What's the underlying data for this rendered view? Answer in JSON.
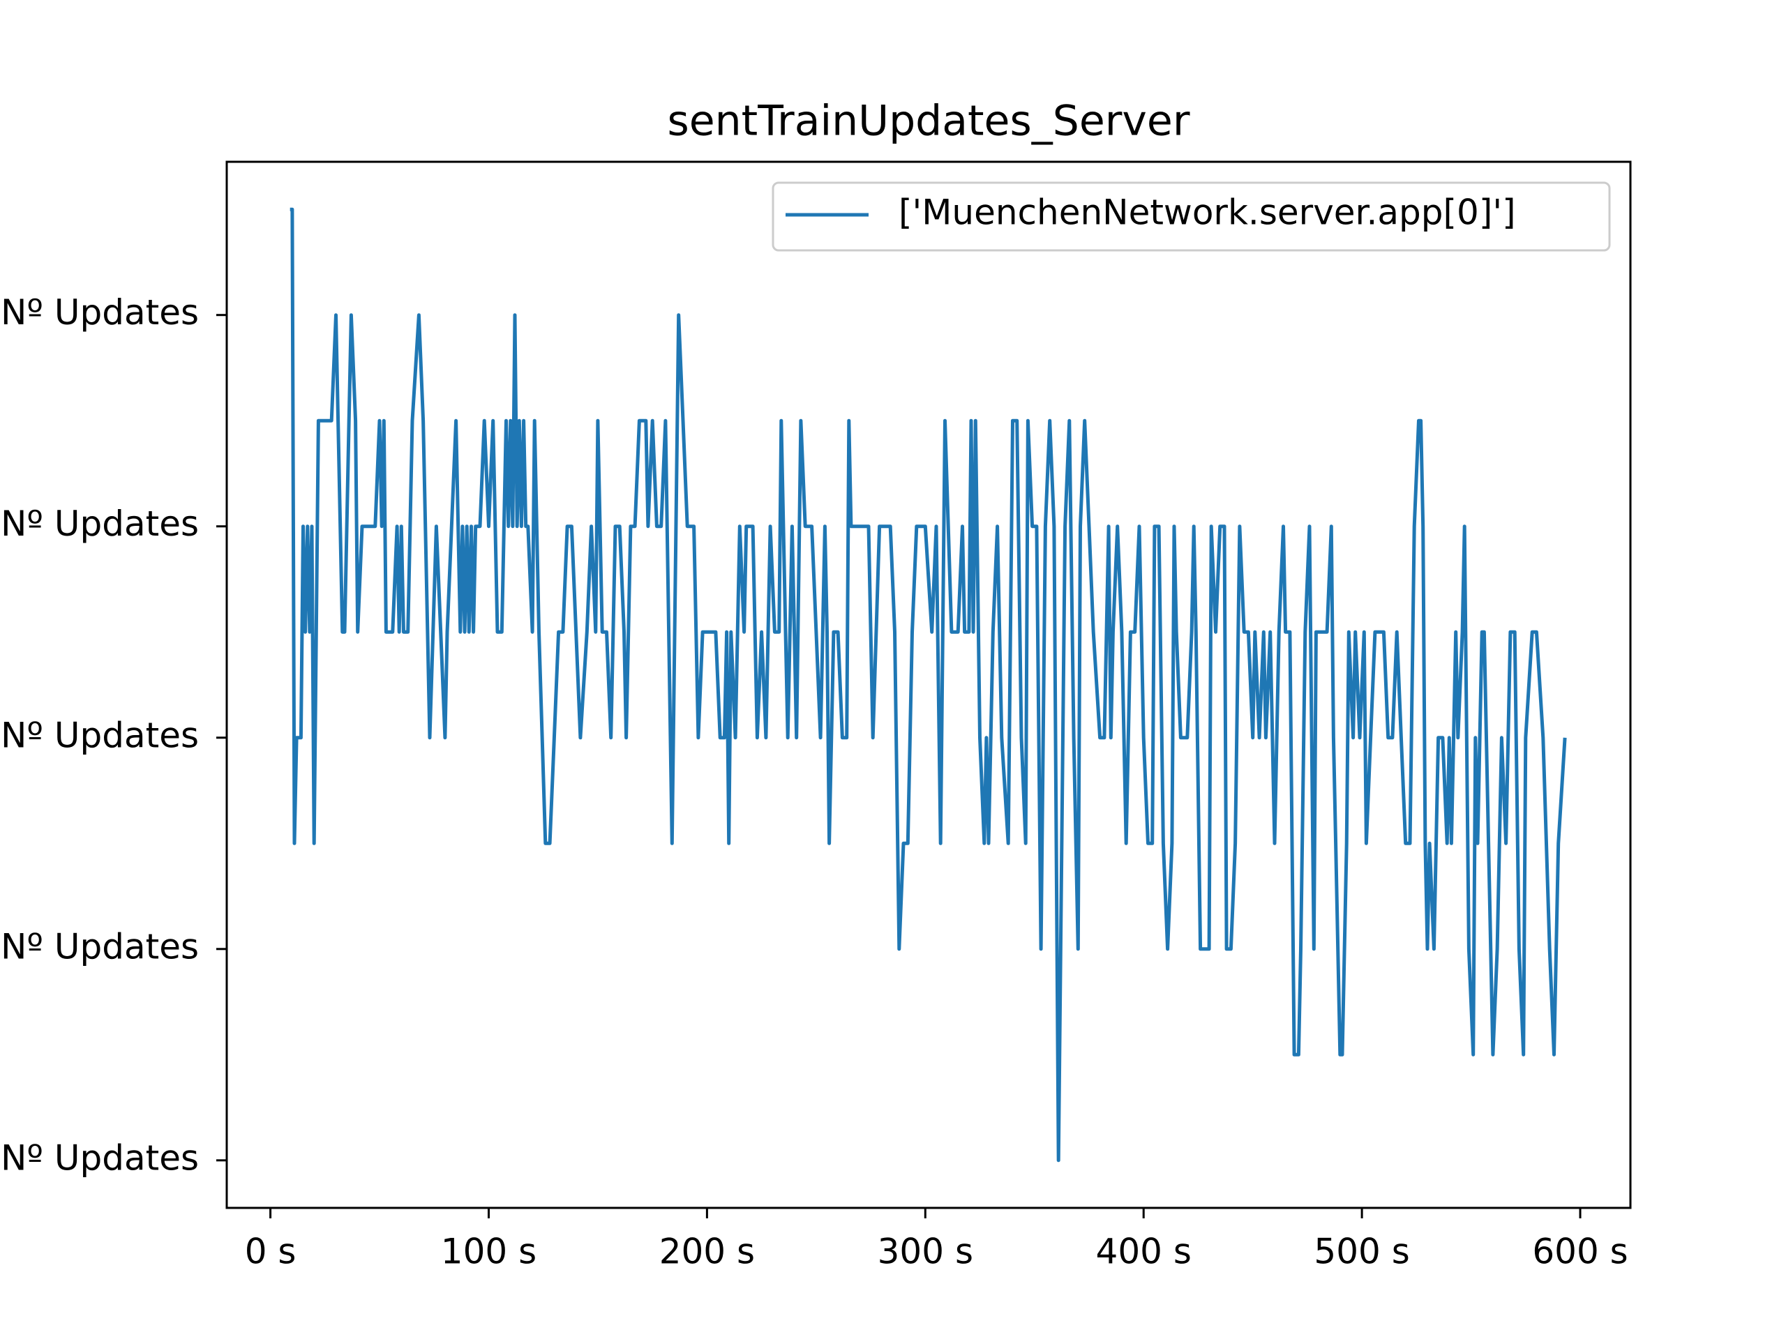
{
  "chart_data": {
    "type": "line",
    "title": "sentTrainUpdates_Server",
    "x": [
      9,
      10,
      11,
      12,
      14,
      15,
      16,
      17,
      18,
      19,
      20,
      22,
      24,
      28,
      30,
      31,
      33,
      34,
      36,
      37,
      39,
      40,
      42,
      44,
      48,
      50,
      51,
      52,
      53,
      56,
      58,
      59,
      60,
      61,
      63,
      65,
      68,
      70,
      73,
      76,
      78,
      80,
      81,
      83,
      85,
      86,
      87,
      88,
      89,
      90,
      91,
      92,
      93,
      94,
      96,
      98,
      100,
      102,
      104,
      106,
      108,
      109,
      110,
      111,
      112,
      113,
      114,
      115,
      116,
      117,
      118,
      120,
      121,
      123,
      126,
      128,
      130,
      132,
      134,
      136,
      138,
      142,
      145,
      147,
      149,
      150,
      152,
      154,
      156,
      158,
      160,
      162,
      163,
      165,
      167,
      169,
      172,
      173,
      175,
      177,
      179,
      181,
      184,
      187,
      189,
      191,
      194,
      196,
      198,
      204,
      206,
      208,
      209,
      210,
      211,
      213,
      215,
      217,
      218,
      221,
      222,
      223,
      225,
      227,
      229,
      231,
      233,
      234,
      236,
      237,
      239,
      241,
      243,
      245,
      248,
      250,
      252,
      254,
      255,
      256,
      258,
      260,
      262,
      264,
      265,
      266,
      270,
      274,
      276,
      279,
      283,
      284,
      286,
      288,
      290,
      292,
      294,
      296,
      300,
      303,
      305,
      307,
      309,
      312,
      315,
      317,
      318,
      320,
      321,
      322,
      323,
      325,
      327,
      328,
      329,
      331,
      333,
      335,
      338,
      340,
      342,
      344,
      346,
      347,
      349,
      351,
      353,
      355,
      357,
      359,
      361,
      364,
      366,
      368,
      370,
      371,
      373,
      375,
      377,
      380,
      382,
      384,
      385,
      386,
      388,
      390,
      392,
      394,
      396,
      398,
      400,
      402,
      404,
      405,
      407,
      409,
      411,
      413,
      414,
      415,
      417,
      420,
      422,
      423,
      424,
      426,
      428,
      430,
      431,
      433,
      435,
      437,
      438,
      440,
      442,
      444,
      446,
      448,
      450,
      451,
      453,
      455,
      456,
      458,
      460,
      462,
      464,
      465,
      467,
      469,
      471,
      472,
      474,
      476,
      478,
      479,
      481,
      484,
      486,
      487,
      488,
      490,
      491,
      493,
      494,
      496,
      497,
      499,
      501,
      502,
      504,
      506,
      510,
      512,
      514,
      516,
      518,
      520,
      522,
      524,
      526,
      527,
      528,
      529,
      530,
      531,
      533,
      535,
      537,
      539,
      540,
      541,
      543,
      544,
      546,
      547,
      549,
      551,
      552,
      553,
      555,
      556,
      558,
      560,
      562,
      564,
      566,
      568,
      570,
      572,
      574,
      575,
      578,
      580,
      583,
      586,
      588,
      590,
      593
    ],
    "series": [
      {
        "name": "['MuenchenNetwork.server.app[0]']",
        "color": "#1f77b4",
        "values": [
          9,
          9,
          3,
          4,
          4,
          6,
          5,
          6,
          5,
          6,
          3,
          7,
          7,
          7,
          8,
          7,
          5,
          5,
          7,
          8,
          7,
          5,
          6,
          6,
          6,
          7,
          6,
          7,
          5,
          5,
          6,
          5,
          6,
          5,
          5,
          7,
          8,
          7,
          4,
          6,
          5,
          4,
          5,
          6,
          7,
          6,
          5,
          6,
          5,
          6,
          5,
          6,
          5,
          6,
          6,
          7,
          6,
          7,
          5,
          5,
          7,
          6,
          7,
          6,
          8,
          6,
          7,
          6,
          7,
          6,
          6,
          5,
          7,
          5,
          3,
          3,
          4,
          5,
          5,
          6,
          6,
          4,
          5,
          6,
          5,
          7,
          5,
          5,
          4,
          6,
          6,
          5,
          4,
          6,
          6,
          7,
          7,
          6,
          7,
          6,
          6,
          7,
          3,
          8,
          7,
          6,
          6,
          4,
          5,
          5,
          4,
          4,
          5,
          3,
          5,
          4,
          6,
          5,
          6,
          6,
          5,
          4,
          5,
          4,
          6,
          5,
          5,
          7,
          5,
          4,
          6,
          4,
          7,
          6,
          6,
          5,
          4,
          6,
          5,
          3,
          5,
          5,
          4,
          4,
          7,
          6,
          6,
          6,
          4,
          6,
          6,
          6,
          5,
          2,
          3,
          3,
          5,
          6,
          6,
          5,
          6,
          3,
          7,
          5,
          5,
          6,
          5,
          5,
          7,
          5,
          7,
          4,
          3,
          4,
          3,
          5,
          6,
          4,
          3,
          7,
          7,
          4,
          3,
          7,
          6,
          6,
          2,
          6,
          7,
          6,
          0,
          6,
          7,
          4,
          2,
          6,
          7,
          6,
          5,
          4,
          4,
          6,
          4,
          5,
          6,
          5,
          3,
          5,
          5,
          6,
          4,
          3,
          3,
          6,
          6,
          3,
          2,
          3,
          6,
          5,
          4,
          4,
          5,
          6,
          5,
          2,
          2,
          2,
          6,
          5,
          6,
          6,
          2,
          2,
          3,
          6,
          5,
          5,
          4,
          5,
          4,
          5,
          4,
          5,
          3,
          5,
          6,
          5,
          5,
          1,
          1,
          2,
          5,
          6,
          2,
          5,
          5,
          5,
          6,
          4,
          3,
          1,
          1,
          3,
          5,
          4,
          5,
          4,
          5,
          3,
          4,
          5,
          5,
          4,
          4,
          5,
          4,
          3,
          3,
          6,
          7,
          7,
          6,
          3,
          2,
          3,
          2,
          4,
          4,
          3,
          4,
          3,
          5,
          4,
          5,
          6,
          2,
          1,
          4,
          3,
          5,
          5,
          3,
          1,
          2,
          4,
          3,
          5,
          5,
          2,
          1,
          4,
          5,
          5,
          4,
          2,
          1,
          3,
          4
        ]
      }
    ],
    "xlim": [
      -20,
      623
    ],
    "ylim": [
      -0.45,
      9.45
    ],
    "xticks": [
      {
        "value": 0,
        "label": "0 s"
      },
      {
        "value": 100,
        "label": "100 s"
      },
      {
        "value": 200,
        "label": "200 s"
      },
      {
        "value": 300,
        "label": "300 s"
      },
      {
        "value": 400,
        "label": "400 s"
      },
      {
        "value": 500,
        "label": "500 s"
      },
      {
        "value": 600,
        "label": "600 s"
      }
    ],
    "yticks": [
      {
        "value": 0,
        "label": "Nº Updates"
      },
      {
        "value": 2,
        "label": "Nº Updates"
      },
      {
        "value": 4,
        "label": "Nº Updates"
      },
      {
        "value": 6,
        "label": "Nº Updates"
      },
      {
        "value": 8,
        "label": "Nº Updates"
      }
    ],
    "legend": "upper right"
  }
}
